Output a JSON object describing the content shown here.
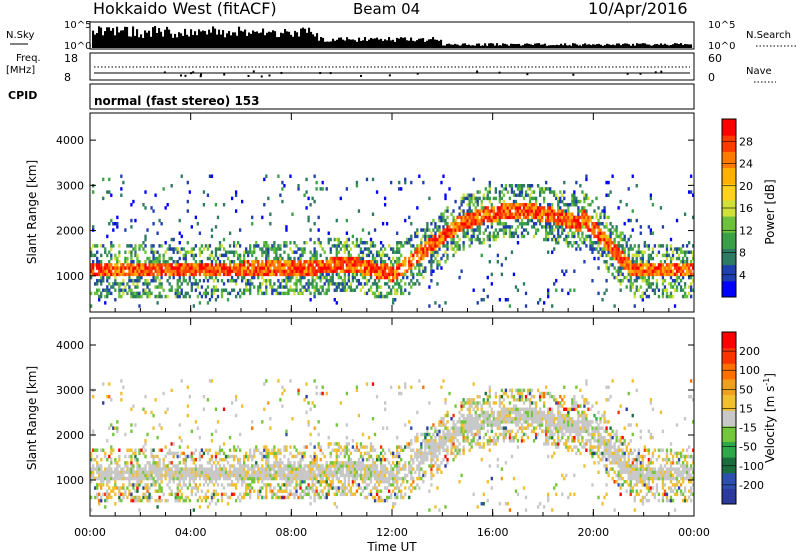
{
  "header": {
    "station": "Hokkaido West (fitACF)",
    "beam": "Beam 04",
    "date": "10/Apr/2016"
  },
  "strip": {
    "nsky_label": "N.Sky",
    "nsearch_label": "N.Search",
    "noise_ticks": [
      "10^5",
      "10^0"
    ],
    "freq_label": "Freq.",
    "freq_unit": "[MHz]",
    "freq_ticks": [
      "18",
      "8"
    ],
    "nave_label": "Nave",
    "nave_ticks": [
      "60",
      "0"
    ],
    "cpid_label": "CPID",
    "cpid_value": "normal (fast stereo) 153"
  },
  "chart_data": [
    {
      "type": "heatmap",
      "name": "power",
      "ylabel": "Slant Range [km]",
      "xlabel": "",
      "ylim": [
        200,
        4600
      ],
      "yticks": [
        "1000",
        "2000",
        "3000",
        "4000"
      ],
      "xlim": [
        "00:00",
        "24:00"
      ],
      "colorbar": {
        "label": "Power [dB]",
        "ticks": [
          "28",
          "24",
          "20",
          "16",
          "12",
          "8",
          "4"
        ],
        "colors": [
          "#0000ff",
          "#1f3fae",
          "#2f7a63",
          "#3aa048",
          "#6cc33a",
          "#cfe03a",
          "#ffd21e",
          "#ffb100",
          "#ff7a00",
          "#ff3a00",
          "#ff0000"
        ],
        "range": [
          0,
          30
        ]
      }
    },
    {
      "type": "heatmap",
      "name": "velocity",
      "ylabel": "Slant Range [km]",
      "xlabel": "Time UT",
      "ylim": [
        200,
        4600
      ],
      "yticks": [
        "1000",
        "2000",
        "3000",
        "4000"
      ],
      "xticks": [
        "00:00",
        "04:00",
        "08:00",
        "12:00",
        "16:00",
        "20:00",
        "00:00"
      ],
      "colorbar": {
        "label": "Velocity [m s",
        "label_sup": "-1",
        "label_end": "]",
        "ticks": [
          "200",
          "100",
          "50",
          "15",
          "-15",
          "-50",
          "-100",
          "-200"
        ],
        "colors": [
          "#2a3a9e",
          "#2d4fb0",
          "#1a6e3e",
          "#2fa84a",
          "#74c63a",
          "#c8c8c8",
          "#f0c030",
          "#f0a020",
          "#ff7000",
          "#ff3300",
          "#ff0000"
        ]
      }
    }
  ]
}
